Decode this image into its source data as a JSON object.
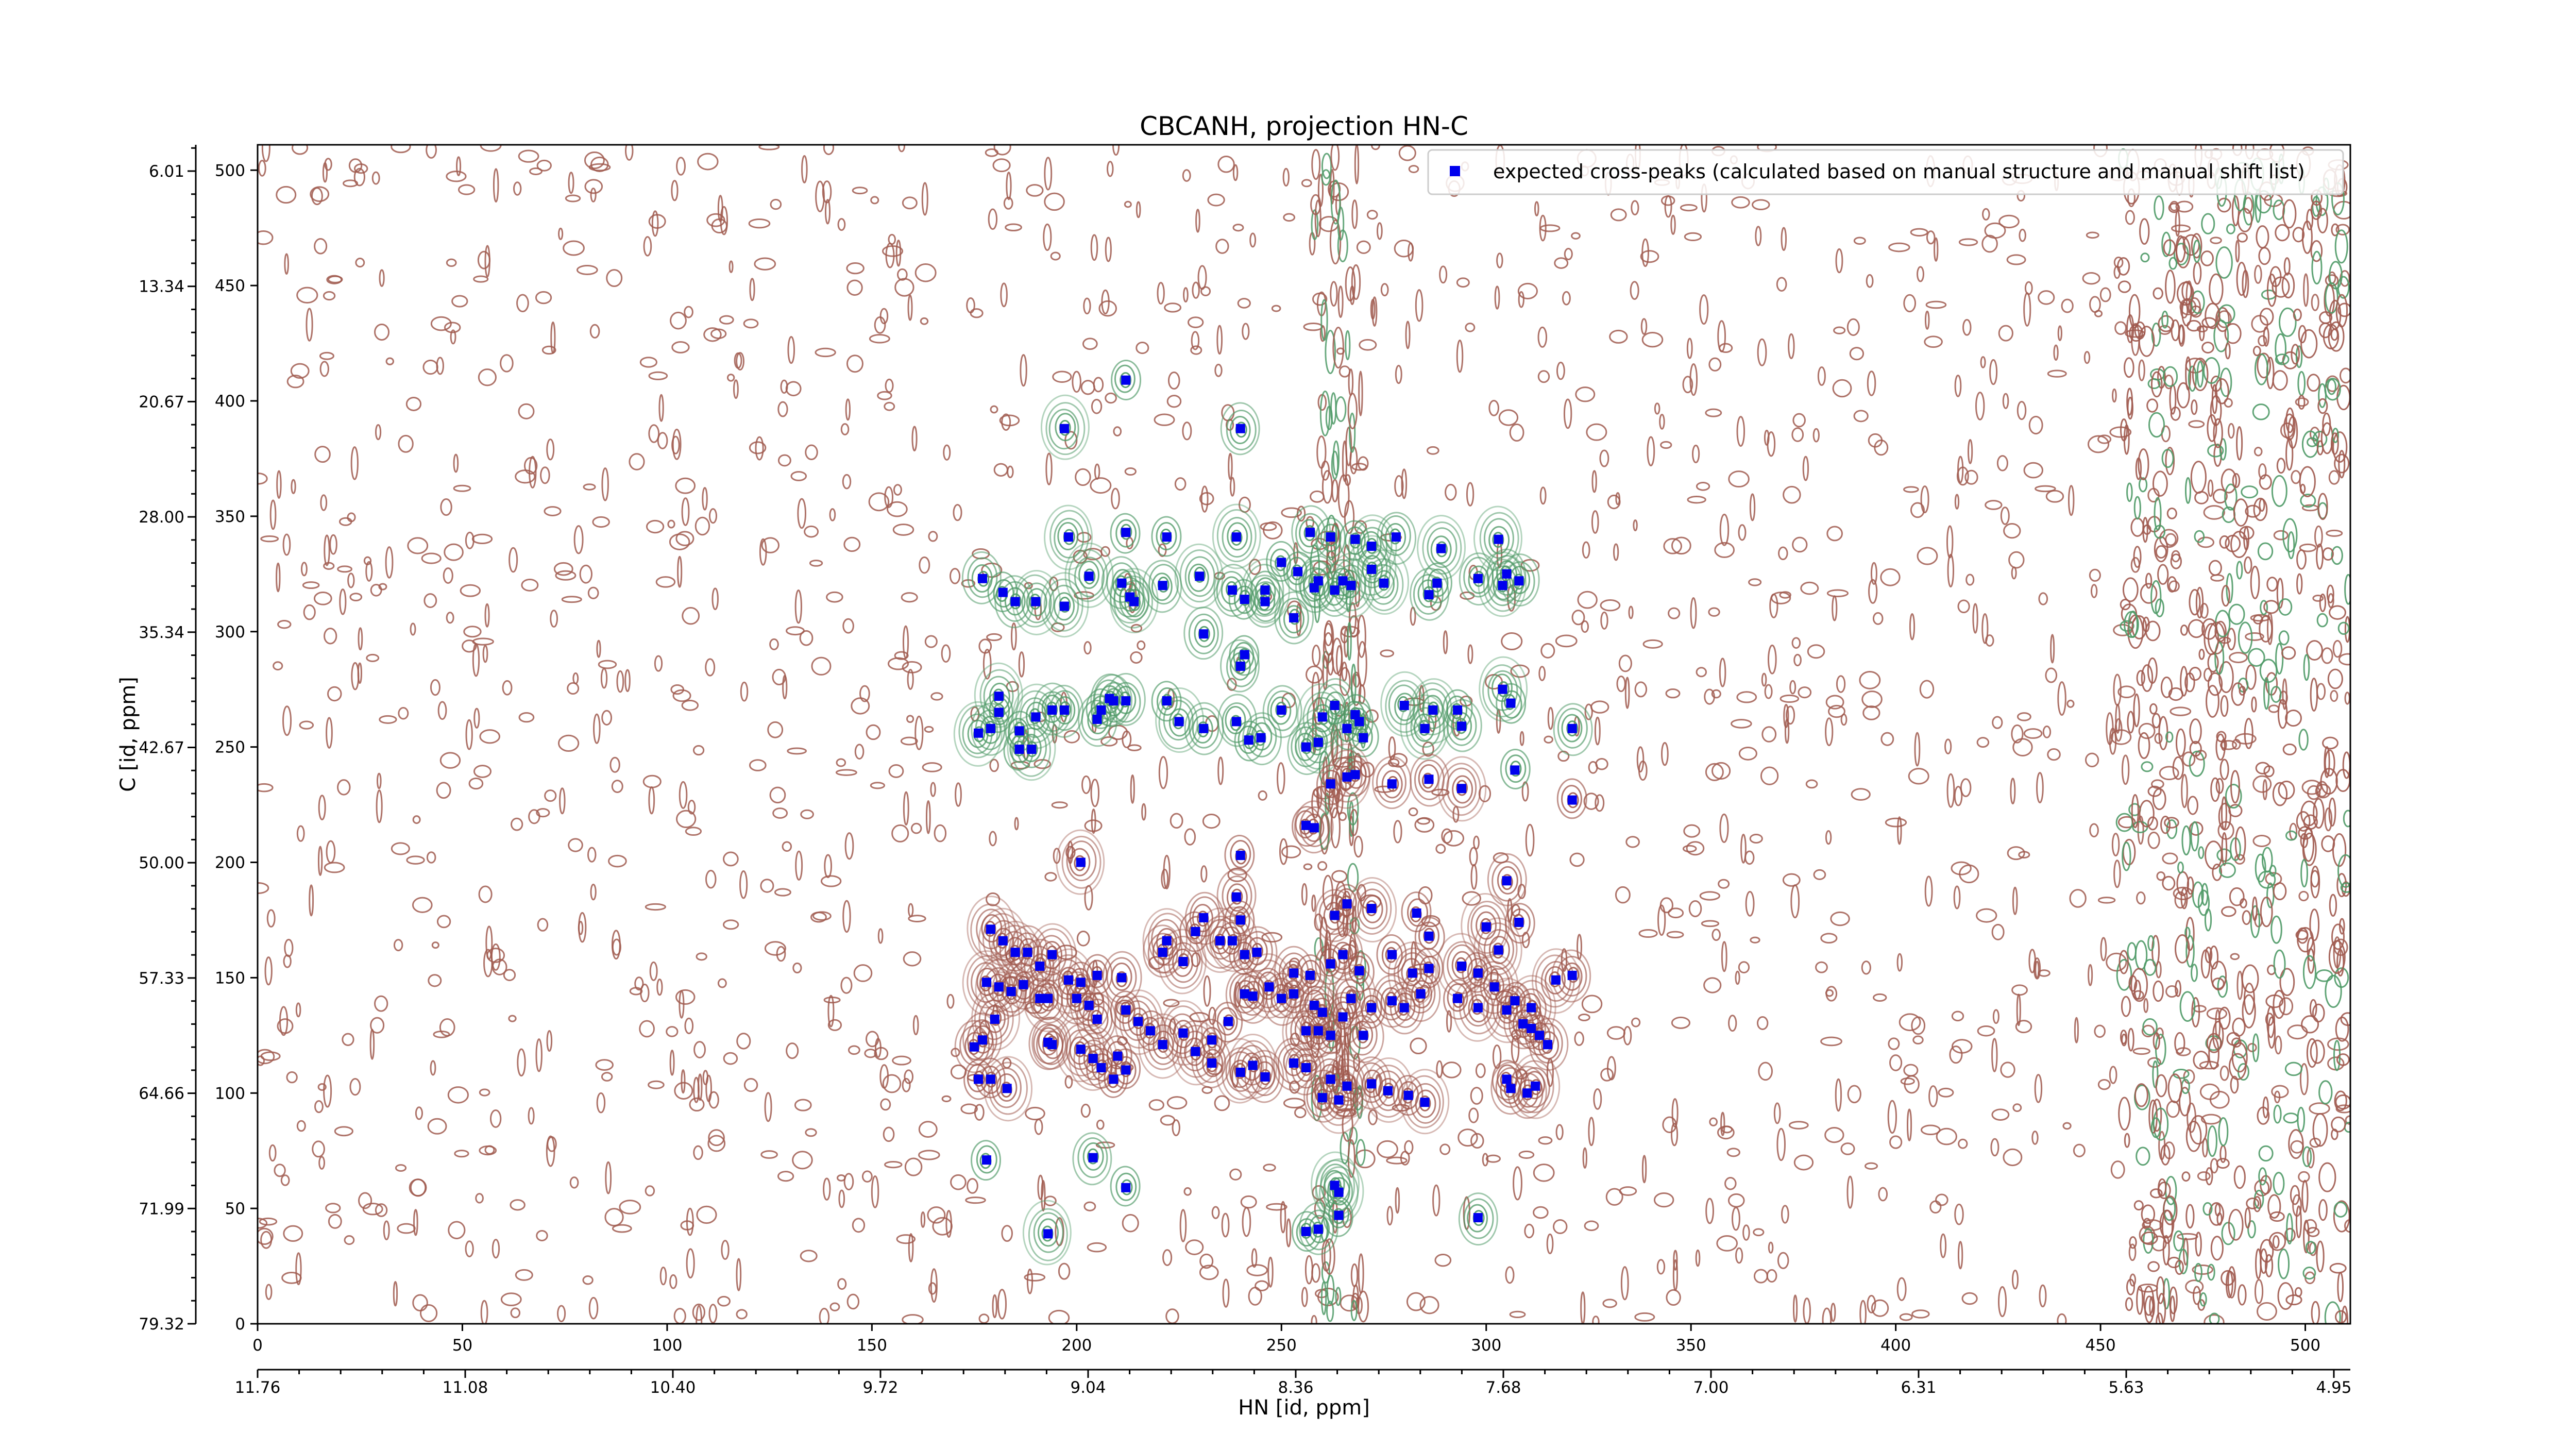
{
  "chart_data": {
    "type": "scatter",
    "title": "CBCANH, projection HN-C",
    "xlabel": "HN [id, ppm]",
    "ylabel": "C [id, ppm]",
    "xlim": [
      0,
      511
    ],
    "ylim": [
      0,
      511
    ],
    "x_ticks": [
      0,
      50,
      100,
      150,
      200,
      250,
      300,
      350,
      400,
      450,
      500
    ],
    "y_ticks": [
      0,
      50,
      100,
      150,
      200,
      250,
      300,
      350,
      400,
      450,
      500
    ],
    "x_ppm_ticks": [
      "11.76",
      "11.08",
      "10.40",
      "9.72",
      "9.04",
      "8.36",
      "7.68",
      "7.00",
      "6.31",
      "5.63",
      "4.95"
    ],
    "y_ppm_ticks": [
      "79.32",
      "71.99",
      "64.66",
      "57.33",
      "50.00",
      "42.67",
      "35.34",
      "28.00",
      "20.67",
      "13.34",
      "6.01"
    ],
    "legend": {
      "entries": [
        "expected cross-peaks (calculated based on manual structure and manual shift list)"
      ],
      "placement": "top-right"
    },
    "colors": {
      "positive_contour": "#a05a4f",
      "negative_contour": "#4f9a67",
      "peak_marker": "#0000ee"
    },
    "grid": false,
    "series": [
      {
        "name": "expected cross-peaks (calculated based on manual structure and manual shift list)",
        "points": [
          [
            212,
            409
          ],
          [
            197,
            388
          ],
          [
            240,
            388
          ],
          [
            198,
            341
          ],
          [
            212,
            343
          ],
          [
            222,
            341
          ],
          [
            239,
            341
          ],
          [
            257,
            343
          ],
          [
            262,
            341
          ],
          [
            268,
            340
          ],
          [
            272,
            337
          ],
          [
            278,
            341
          ],
          [
            289,
            336
          ],
          [
            303,
            340
          ],
          [
            177,
            323
          ],
          [
            182,
            317
          ],
          [
            185,
            313
          ],
          [
            190,
            313
          ],
          [
            197,
            311
          ],
          [
            203,
            324
          ],
          [
            211,
            321
          ],
          [
            230,
            324
          ],
          [
            250,
            330
          ],
          [
            254,
            326
          ],
          [
            259,
            322
          ],
          [
            265,
            322
          ],
          [
            272,
            327
          ],
          [
            221,
            320
          ],
          [
            213,
            315
          ],
          [
            214,
            313
          ],
          [
            238,
            318
          ],
          [
            241,
            314
          ],
          [
            246,
            318
          ],
          [
            258,
            319
          ],
          [
            263,
            318
          ],
          [
            267,
            320
          ],
          [
            286,
            316
          ],
          [
            298,
            323
          ],
          [
            305,
            325
          ],
          [
            308,
            322
          ],
          [
            304,
            320
          ],
          [
            275,
            321
          ],
          [
            246,
            313
          ],
          [
            253,
            306
          ],
          [
            288,
            321
          ],
          [
            231,
            299
          ],
          [
            241,
            290
          ],
          [
            240,
            285
          ],
          [
            176,
            256
          ],
          [
            179,
            258
          ],
          [
            181,
            265
          ],
          [
            186,
            257
          ],
          [
            181,
            272
          ],
          [
            190,
            263
          ],
          [
            194,
            266
          ],
          [
            197,
            266
          ],
          [
            205,
            262
          ],
          [
            206,
            266
          ],
          [
            208,
            271
          ],
          [
            212,
            270
          ],
          [
            222,
            270
          ],
          [
            225,
            261
          ],
          [
            231,
            258
          ],
          [
            239,
            261
          ],
          [
            242,
            253
          ],
          [
            245,
            254
          ],
          [
            250,
            266
          ],
          [
            256,
            250
          ],
          [
            259,
            252
          ],
          [
            260,
            263
          ],
          [
            263,
            268
          ],
          [
            268,
            264
          ],
          [
            270,
            254
          ],
          [
            280,
            268
          ],
          [
            285,
            258
          ],
          [
            287,
            266
          ],
          [
            293,
            266
          ],
          [
            294,
            259
          ],
          [
            304,
            275
          ],
          [
            306,
            269
          ],
          [
            321,
            258
          ],
          [
            209,
            270
          ],
          [
            186,
            249
          ],
          [
            189,
            249
          ],
          [
            266,
            258
          ],
          [
            269,
            261
          ],
          [
            262,
            234
          ],
          [
            266,
            237
          ],
          [
            268,
            238
          ],
          [
            277,
            234
          ],
          [
            286,
            236
          ],
          [
            307,
            240
          ],
          [
            256,
            216
          ],
          [
            258,
            215
          ],
          [
            294,
            232
          ],
          [
            321,
            227
          ],
          [
            201,
            200
          ],
          [
            240,
            203
          ],
          [
            231,
            176
          ],
          [
            239,
            185
          ],
          [
            240,
            175
          ],
          [
            263,
            177
          ],
          [
            266,
            182
          ],
          [
            272,
            180
          ],
          [
            283,
            178
          ],
          [
            286,
            168
          ],
          [
            300,
            172
          ],
          [
            305,
            192
          ],
          [
            308,
            174
          ],
          [
            303,
            162
          ],
          [
            179,
            171
          ],
          [
            182,
            166
          ],
          [
            185,
            161
          ],
          [
            188,
            161
          ],
          [
            191,
            155
          ],
          [
            194,
            160
          ],
          [
            198,
            149
          ],
          [
            201,
            148
          ],
          [
            205,
            151
          ],
          [
            211,
            150
          ],
          [
            221,
            161
          ],
          [
            222,
            166
          ],
          [
            226,
            157
          ],
          [
            229,
            170
          ],
          [
            235,
            166
          ],
          [
            238,
            166
          ],
          [
            241,
            160
          ],
          [
            244,
            161
          ],
          [
            253,
            152
          ],
          [
            257,
            151
          ],
          [
            262,
            156
          ],
          [
            265,
            160
          ],
          [
            269,
            153
          ],
          [
            277,
            160
          ],
          [
            282,
            152
          ],
          [
            286,
            154
          ],
          [
            294,
            155
          ],
          [
            298,
            152
          ],
          [
            302,
            146
          ],
          [
            307,
            140
          ],
          [
            311,
            137
          ],
          [
            317,
            149
          ],
          [
            321,
            151
          ],
          [
            178,
            148
          ],
          [
            181,
            146
          ],
          [
            184,
            144
          ],
          [
            187,
            147
          ],
          [
            180,
            132
          ],
          [
            191,
            141
          ],
          [
            193,
            141
          ],
          [
            200,
            141
          ],
          [
            203,
            138
          ],
          [
            205,
            132
          ],
          [
            212,
            136
          ],
          [
            215,
            131
          ],
          [
            218,
            127
          ],
          [
            221,
            121
          ],
          [
            226,
            126
          ],
          [
            233,
            123
          ],
          [
            237,
            131
          ],
          [
            241,
            143
          ],
          [
            243,
            142
          ],
          [
            247,
            146
          ],
          [
            250,
            141
          ],
          [
            253,
            143
          ],
          [
            258,
            138
          ],
          [
            260,
            135
          ],
          [
            265,
            133
          ],
          [
            267,
            141
          ],
          [
            272,
            137
          ],
          [
            277,
            140
          ],
          [
            280,
            137
          ],
          [
            256,
            127
          ],
          [
            259,
            127
          ],
          [
            262,
            125
          ],
          [
            270,
            125
          ],
          [
            284,
            143
          ],
          [
            293,
            141
          ],
          [
            298,
            137
          ],
          [
            305,
            136
          ],
          [
            309,
            130
          ],
          [
            311,
            128
          ],
          [
            313,
            125
          ],
          [
            315,
            121
          ],
          [
            175,
            120
          ],
          [
            177,
            123
          ],
          [
            193,
            122
          ],
          [
            194,
            121
          ],
          [
            201,
            119
          ],
          [
            204,
            115
          ],
          [
            206,
            111
          ],
          [
            210,
            116
          ],
          [
            212,
            110
          ],
          [
            229,
            118
          ],
          [
            233,
            113
          ],
          [
            240,
            109
          ],
          [
            243,
            112
          ],
          [
            246,
            107
          ],
          [
            253,
            113
          ],
          [
            256,
            111
          ],
          [
            262,
            106
          ],
          [
            266,
            103
          ],
          [
            260,
            98
          ],
          [
            264,
            97
          ],
          [
            272,
            104
          ],
          [
            276,
            101
          ],
          [
            281,
            99
          ],
          [
            285,
            96
          ],
          [
            305,
            106
          ],
          [
            306,
            102
          ],
          [
            310,
            100
          ],
          [
            312,
            103
          ],
          [
            176,
            106
          ],
          [
            179,
            106
          ],
          [
            183,
            102
          ],
          [
            178,
            71
          ],
          [
            204,
            72
          ],
          [
            212,
            59
          ],
          [
            193,
            39
          ],
          [
            263,
            60
          ],
          [
            264,
            57
          ],
          [
            264,
            47
          ],
          [
            259,
            41
          ],
          [
            256,
            40
          ],
          [
            298,
            46
          ],
          [
            209,
            106
          ]
        ]
      }
    ]
  }
}
